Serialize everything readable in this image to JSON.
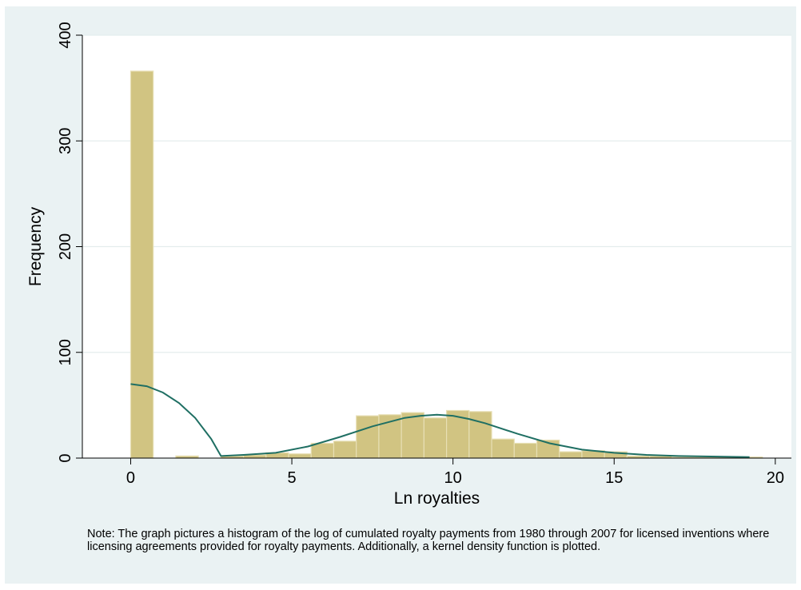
{
  "chart_data": {
    "type": "bar",
    "xlabel": "Ln royalties",
    "ylabel": "Frequency",
    "xlim": [
      -1.5,
      20.5
    ],
    "ylim": [
      0,
      400
    ],
    "xticks": [
      "0",
      "5",
      "10",
      "15",
      "20"
    ],
    "yticks": [
      "0",
      "100",
      "200",
      "300",
      "400"
    ],
    "grid": true,
    "bin_width": 0.7,
    "histogram": {
      "bin_starts": [
        0,
        0.7,
        1.4,
        2.1,
        2.8,
        3.5,
        4.2,
        4.9,
        5.6,
        6.3,
        7.0,
        7.7,
        8.4,
        9.1,
        9.8,
        10.5,
        11.2,
        11.9,
        12.6,
        13.3,
        14.0,
        14.7,
        15.4,
        16.1,
        16.8,
        17.5,
        18.2,
        18.9
      ],
      "values": [
        366,
        0,
        2,
        0,
        2,
        3,
        5,
        4,
        14,
        16,
        40,
        41,
        43,
        38,
        45,
        44,
        18,
        14,
        17,
        6,
        7,
        6,
        2,
        2,
        1,
        1,
        1,
        1
      ]
    },
    "density": {
      "x": [
        0,
        0.5,
        1.0,
        1.5,
        2.0,
        2.5,
        2.8,
        3.5,
        4.5,
        5.5,
        6.5,
        7.5,
        8.5,
        9.0,
        9.5,
        10.0,
        10.5,
        11.0,
        12.0,
        13.0,
        14.0,
        15.0,
        16.0,
        17.0,
        18.0,
        19.2
      ],
      "y": [
        70,
        68,
        62,
        52,
        38,
        18,
        2,
        3,
        5,
        11,
        20,
        30,
        38,
        40,
        41,
        40,
        37,
        33,
        23,
        14,
        8,
        5,
        3,
        2,
        1.5,
        1
      ]
    }
  },
  "note": "Note: The graph pictures a histogram of the log of cumulated royalty payments from 1980 through 2007 for licensed inventions where licensing agreements provided for royalty payments. Additionally, a kernel density function is plotted.",
  "colors": {
    "background": "#eaf2f3",
    "plot_area": "#ffffff",
    "bar_fill": "#d1c482",
    "bar_edge": "#e7dfb4",
    "density_line": "#1f6f63",
    "grid": "#e4eded"
  }
}
